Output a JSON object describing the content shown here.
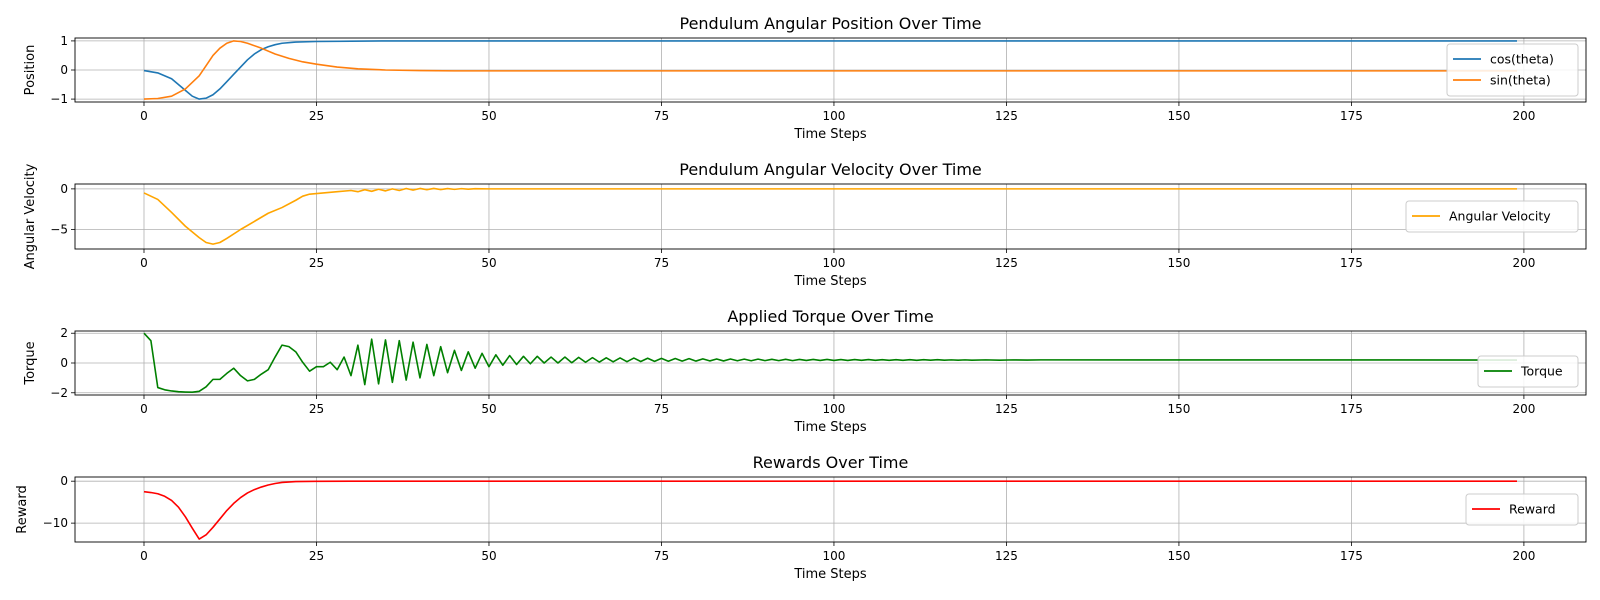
{
  "chart_data": [
    {
      "type": "line",
      "title": "Pendulum Angular Position Over Time",
      "xlabel": "Time Steps",
      "ylabel": "Position",
      "xlim": [
        -10,
        209
      ],
      "ylim": [
        -1.1,
        1.1
      ],
      "xticks": [
        0,
        25,
        50,
        75,
        100,
        125,
        150,
        175,
        200
      ],
      "yticks": [
        -1,
        0,
        1
      ],
      "grid": true,
      "legend_position": "right",
      "series": [
        {
          "name": "cos(theta)",
          "color": "#1f77b4",
          "points": [
            [
              0,
              -0.02
            ],
            [
              2,
              -0.1
            ],
            [
              4,
              -0.3
            ],
            [
              6,
              -0.7
            ],
            [
              7,
              -0.9
            ],
            [
              8,
              -1.0
            ],
            [
              9,
              -0.97
            ],
            [
              10,
              -0.85
            ],
            [
              11,
              -0.65
            ],
            [
              12,
              -0.4
            ],
            [
              13,
              -0.15
            ],
            [
              14,
              0.1
            ],
            [
              15,
              0.35
            ],
            [
              16,
              0.55
            ],
            [
              17,
              0.7
            ],
            [
              18,
              0.8
            ],
            [
              19,
              0.87
            ],
            [
              20,
              0.92
            ],
            [
              22,
              0.96
            ],
            [
              25,
              0.98
            ],
            [
              30,
              0.99
            ],
            [
              35,
              1.0
            ],
            [
              199,
              1.0
            ]
          ]
        },
        {
          "name": "sin(theta)",
          "color": "#ff7f0e",
          "points": [
            [
              0,
              -1.0
            ],
            [
              2,
              -0.98
            ],
            [
              4,
              -0.9
            ],
            [
              6,
              -0.65
            ],
            [
              8,
              -0.2
            ],
            [
              9,
              0.15
            ],
            [
              10,
              0.5
            ],
            [
              11,
              0.75
            ],
            [
              12,
              0.92
            ],
            [
              13,
              1.0
            ],
            [
              14,
              0.98
            ],
            [
              15,
              0.92
            ],
            [
              17,
              0.75
            ],
            [
              19,
              0.55
            ],
            [
              21,
              0.4
            ],
            [
              23,
              0.28
            ],
            [
              25,
              0.2
            ],
            [
              28,
              0.1
            ],
            [
              31,
              0.04
            ],
            [
              35,
              0.0
            ],
            [
              40,
              -0.02
            ],
            [
              45,
              -0.03
            ],
            [
              199,
              -0.03
            ]
          ]
        }
      ]
    },
    {
      "type": "line",
      "title": "Pendulum Angular Velocity Over Time",
      "xlabel": "Time Steps",
      "ylabel": "Angular Velocity",
      "xlim": [
        -10,
        209
      ],
      "ylim": [
        -7.4,
        0.6
      ],
      "xticks": [
        0,
        25,
        50,
        75,
        100,
        125,
        150,
        175,
        200
      ],
      "yticks": [
        -5,
        0
      ],
      "grid": true,
      "legend_position": "right",
      "series": [
        {
          "name": "Angular Velocity",
          "color": "#ffa500",
          "points": [
            [
              0,
              -0.5
            ],
            [
              2,
              -1.3
            ],
            [
              4,
              -2.9
            ],
            [
              6,
              -4.6
            ],
            [
              8,
              -6.0
            ],
            [
              9,
              -6.6
            ],
            [
              10,
              -6.8
            ],
            [
              11,
              -6.6
            ],
            [
              12,
              -6.1
            ],
            [
              14,
              -5.0
            ],
            [
              16,
              -4.0
            ],
            [
              18,
              -3.0
            ],
            [
              20,
              -2.3
            ],
            [
              22,
              -1.4
            ],
            [
              23,
              -0.9
            ],
            [
              24,
              -0.65
            ],
            [
              26,
              -0.5
            ],
            [
              28,
              -0.35
            ],
            [
              30,
              -0.2
            ],
            [
              31,
              -0.35
            ],
            [
              32,
              -0.1
            ],
            [
              33,
              -0.3
            ],
            [
              34,
              -0.05
            ],
            [
              35,
              -0.25
            ],
            [
              36,
              0.0
            ],
            [
              37,
              -0.2
            ],
            [
              38,
              0.05
            ],
            [
              39,
              -0.15
            ],
            [
              40,
              0.05
            ],
            [
              41,
              -0.1
            ],
            [
              42,
              0.05
            ],
            [
              43,
              -0.08
            ],
            [
              44,
              0.04
            ],
            [
              45,
              -0.06
            ],
            [
              46,
              0.03
            ],
            [
              47,
              -0.04
            ],
            [
              48,
              0.02
            ],
            [
              50,
              0.0
            ],
            [
              199,
              0.0
            ]
          ]
        }
      ]
    },
    {
      "type": "line",
      "title": "Applied Torque Over Time",
      "xlabel": "Time Steps",
      "ylabel": "Torque",
      "xlim": [
        -10,
        209
      ],
      "ylim": [
        -2.15,
        2.15
      ],
      "xticks": [
        0,
        25,
        50,
        75,
        100,
        125,
        150,
        175,
        200
      ],
      "yticks": [
        -2,
        0,
        2
      ],
      "grid": true,
      "legend_position": "bottom-right",
      "series": [
        {
          "name": "Torque",
          "color": "#008000",
          "points": [
            [
              0,
              2.0
            ],
            [
              1,
              1.5
            ],
            [
              2,
              -1.65
            ],
            [
              3,
              -1.8
            ],
            [
              4,
              -1.88
            ],
            [
              5,
              -1.93
            ],
            [
              6,
              -1.95
            ],
            [
              7,
              -1.96
            ],
            [
              8,
              -1.9
            ],
            [
              9,
              -1.6
            ],
            [
              10,
              -1.1
            ],
            [
              11,
              -1.1
            ],
            [
              12,
              -0.7
            ],
            [
              13,
              -0.35
            ],
            [
              14,
              -0.85
            ],
            [
              15,
              -1.2
            ],
            [
              16,
              -1.1
            ],
            [
              17,
              -0.75
            ],
            [
              18,
              -0.45
            ],
            [
              19,
              0.4
            ],
            [
              20,
              1.2
            ],
            [
              21,
              1.1
            ],
            [
              22,
              0.75
            ],
            [
              23,
              0.05
            ],
            [
              24,
              -0.55
            ],
            [
              25,
              -0.25
            ],
            [
              26,
              -0.25
            ],
            [
              27,
              0.05
            ],
            [
              28,
              -0.45
            ],
            [
              29,
              0.4
            ],
            [
              30,
              -0.85
            ],
            [
              31,
              1.2
            ],
            [
              32,
              -1.45
            ],
            [
              33,
              1.6
            ],
            [
              34,
              -1.4
            ],
            [
              35,
              1.55
            ],
            [
              36,
              -1.3
            ],
            [
              37,
              1.5
            ],
            [
              38,
              -1.15
            ],
            [
              39,
              1.4
            ],
            [
              40,
              -1.0
            ],
            [
              41,
              1.25
            ],
            [
              42,
              -0.85
            ],
            [
              43,
              1.1
            ],
            [
              44,
              -0.65
            ],
            [
              45,
              0.85
            ],
            [
              46,
              -0.5
            ],
            [
              47,
              0.75
            ],
            [
              48,
              -0.35
            ],
            [
              49,
              0.65
            ],
            [
              50,
              -0.25
            ],
            [
              51,
              0.55
            ],
            [
              52,
              -0.15
            ],
            [
              53,
              0.5
            ],
            [
              54,
              -0.1
            ],
            [
              55,
              0.45
            ],
            [
              56,
              -0.05
            ],
            [
              57,
              0.45
            ],
            [
              58,
              0.0
            ],
            [
              59,
              0.4
            ],
            [
              60,
              0.0
            ],
            [
              61,
              0.4
            ],
            [
              62,
              0.02
            ],
            [
              63,
              0.38
            ],
            [
              64,
              0.05
            ],
            [
              65,
              0.36
            ],
            [
              66,
              0.06
            ],
            [
              67,
              0.35
            ],
            [
              68,
              0.08
            ],
            [
              69,
              0.34
            ],
            [
              70,
              0.09
            ],
            [
              71,
              0.33
            ],
            [
              72,
              0.1
            ],
            [
              73,
              0.32
            ],
            [
              74,
              0.11
            ],
            [
              75,
              0.31
            ],
            [
              76,
              0.12
            ],
            [
              77,
              0.3
            ],
            [
              78,
              0.13
            ],
            [
              79,
              0.29
            ],
            [
              80,
              0.13
            ],
            [
              81,
              0.28
            ],
            [
              82,
              0.14
            ],
            [
              83,
              0.27
            ],
            [
              84,
              0.14
            ],
            [
              85,
              0.27
            ],
            [
              86,
              0.15
            ],
            [
              87,
              0.26
            ],
            [
              88,
              0.15
            ],
            [
              89,
              0.26
            ],
            [
              90,
              0.16
            ],
            [
              91,
              0.25
            ],
            [
              92,
              0.16
            ],
            [
              93,
              0.25
            ],
            [
              94,
              0.16
            ],
            [
              95,
              0.24
            ],
            [
              96,
              0.17
            ],
            [
              97,
              0.24
            ],
            [
              98,
              0.17
            ],
            [
              99,
              0.24
            ],
            [
              100,
              0.17
            ],
            [
              101,
              0.23
            ],
            [
              102,
              0.17
            ],
            [
              103,
              0.23
            ],
            [
              104,
              0.18
            ],
            [
              105,
              0.23
            ],
            [
              106,
              0.18
            ],
            [
              107,
              0.22
            ],
            [
              108,
              0.18
            ],
            [
              109,
              0.22
            ],
            [
              110,
              0.18
            ],
            [
              111,
              0.22
            ],
            [
              112,
              0.18
            ],
            [
              113,
              0.22
            ],
            [
              114,
              0.19
            ],
            [
              115,
              0.22
            ],
            [
              116,
              0.19
            ],
            [
              117,
              0.21
            ],
            [
              118,
              0.19
            ],
            [
              119,
              0.21
            ],
            [
              120,
              0.19
            ],
            [
              122,
              0.21
            ],
            [
              124,
              0.19
            ],
            [
              126,
              0.21
            ],
            [
              128,
              0.2
            ],
            [
              130,
              0.21
            ],
            [
              199,
              0.2
            ]
          ]
        }
      ]
    },
    {
      "type": "line",
      "title": "Rewards Over Time",
      "xlabel": "Time Steps",
      "ylabel": "Reward",
      "xlim": [
        -10,
        209
      ],
      "ylim": [
        -14.5,
        1.0
      ],
      "xticks": [
        0,
        25,
        50,
        75,
        100,
        125,
        150,
        175,
        200
      ],
      "yticks": [
        -10,
        0
      ],
      "grid": true,
      "legend_position": "right",
      "series": [
        {
          "name": "Reward",
          "color": "#ff0000",
          "points": [
            [
              0,
              -2.5
            ],
            [
              1,
              -2.7
            ],
            [
              2,
              -3.0
            ],
            [
              3,
              -3.6
            ],
            [
              4,
              -4.6
            ],
            [
              5,
              -6.2
            ],
            [
              6,
              -8.5
            ],
            [
              7,
              -11.2
            ],
            [
              8,
              -13.8
            ],
            [
              9,
              -12.8
            ],
            [
              10,
              -11.0
            ],
            [
              11,
              -9.0
            ],
            [
              12,
              -7.0
            ],
            [
              13,
              -5.3
            ],
            [
              14,
              -3.9
            ],
            [
              15,
              -2.8
            ],
            [
              16,
              -2.0
            ],
            [
              17,
              -1.4
            ],
            [
              18,
              -0.9
            ],
            [
              19,
              -0.55
            ],
            [
              20,
              -0.3
            ],
            [
              22,
              -0.1
            ],
            [
              25,
              -0.03
            ],
            [
              30,
              0.0
            ],
            [
              199,
              0.0
            ]
          ]
        }
      ]
    }
  ]
}
